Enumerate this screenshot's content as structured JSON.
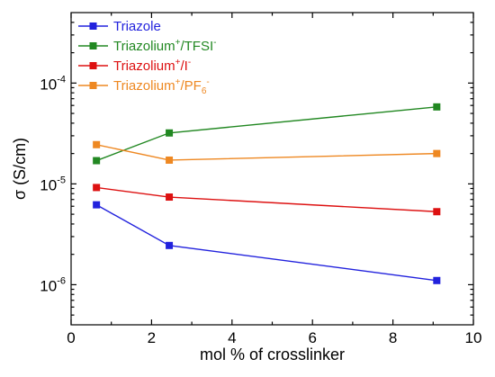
{
  "chart_data": {
    "type": "line",
    "xlabel": "mol % of crosslinker",
    "ylabel": "σ (S/cm)",
    "xlim": [
      0,
      10
    ],
    "ylim": [
      4e-07,
      0.0005
    ],
    "y_scale": "log",
    "grid": false,
    "legend_position": "top-left",
    "x_ticks": [
      0,
      2,
      4,
      6,
      8,
      10
    ],
    "x_tick_labels": [
      "0",
      "2",
      "4",
      "6",
      "8",
      "10"
    ],
    "y_ticks": [
      1e-06,
      1e-05,
      0.0001
    ],
    "y_tick_labels": [
      {
        "base": "10",
        "exp": "-6"
      },
      {
        "base": "10",
        "exp": "-5"
      },
      {
        "base": "10",
        "exp": "-4"
      }
    ],
    "x": [
      0.63,
      2.44,
      9.09
    ],
    "series": [
      {
        "legend": {
          "base": "Triazole"
        },
        "color": "#2222dd",
        "values": [
          6.2e-06,
          2.45e-06,
          1.1e-06
        ]
      },
      {
        "legend": {
          "base": "Triazolium",
          "sup": "+",
          "mid": "/TFSI",
          "sup2": "-"
        },
        "color": "#228822",
        "values": [
          1.7e-05,
          3.2e-05,
          5.8e-05
        ]
      },
      {
        "legend": {
          "base": "Triazolium",
          "sup": "+",
          "mid": "/I",
          "sup2": "-"
        },
        "color": "#dd1111",
        "values": [
          9.2e-06,
          7.4e-06,
          5.3e-06
        ]
      },
      {
        "legend": {
          "base": "Triazolium",
          "sup": "+",
          "mid": "/PF",
          "sub": "6",
          "sup2": "-"
        },
        "color": "#ee8822",
        "values": [
          2.45e-05,
          1.72e-05,
          2e-05
        ]
      }
    ]
  }
}
